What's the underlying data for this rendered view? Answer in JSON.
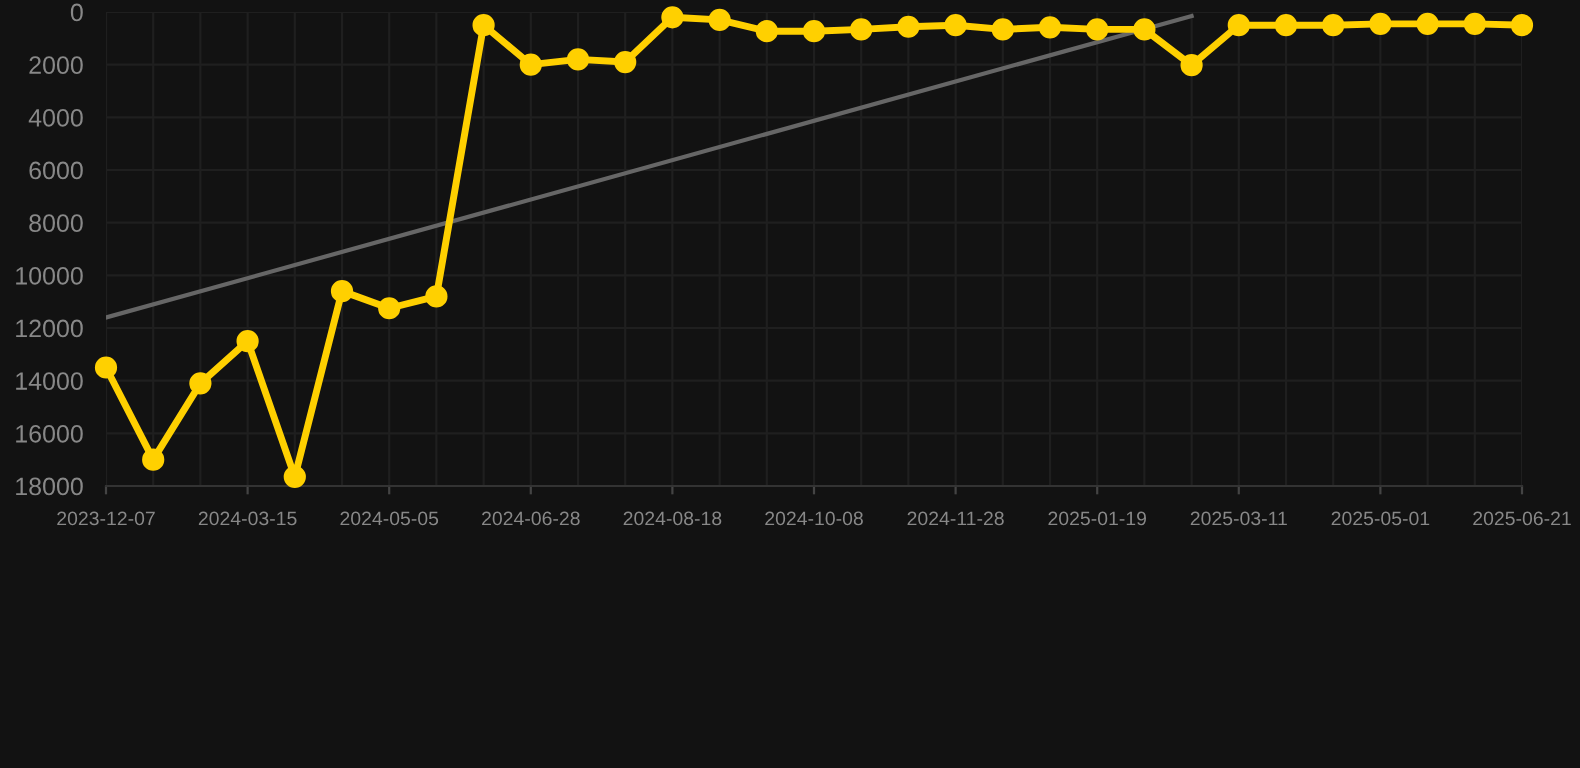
{
  "chart_data": {
    "type": "line",
    "categories": [
      "2023-12-07",
      null,
      null,
      "2024-03-15",
      null,
      null,
      "2024-05-05",
      null,
      null,
      "2024-06-28",
      null,
      null,
      "2024-08-18",
      null,
      null,
      "2024-10-08",
      null,
      null,
      "2024-11-28",
      null,
      null,
      "2025-01-19",
      null,
      null,
      "2025-03-11",
      null,
      null,
      "2025-05-01",
      null,
      null,
      "2025-06-21"
    ],
    "series": [
      {
        "color": "#ffd000",
        "marker": "circle",
        "values": [
          13500,
          17000,
          14100,
          12500,
          17650,
          10600,
          11250,
          10800,
          500,
          2000,
          1800,
          1900,
          200,
          300,
          730,
          730,
          660,
          560,
          500,
          660,
          580,
          660,
          660,
          2020,
          500,
          500,
          500,
          450,
          450,
          450,
          500
        ]
      },
      {
        "color": "#666666",
        "marker": "none",
        "values": [
          11600,
          null,
          null,
          null,
          null,
          null,
          null,
          null,
          null,
          null,
          null,
          null,
          null,
          null,
          null,
          null,
          null,
          null,
          null,
          null,
          null,
          null,
          null,
          150,
          null,
          null,
          null,
          null,
          null,
          null,
          null
        ]
      }
    ],
    "ylim": [
      18000,
      0
    ],
    "yticks": [
      0,
      2000,
      4000,
      6000,
      8000,
      10000,
      12000,
      14000,
      16000,
      18000
    ],
    "grid": true
  }
}
